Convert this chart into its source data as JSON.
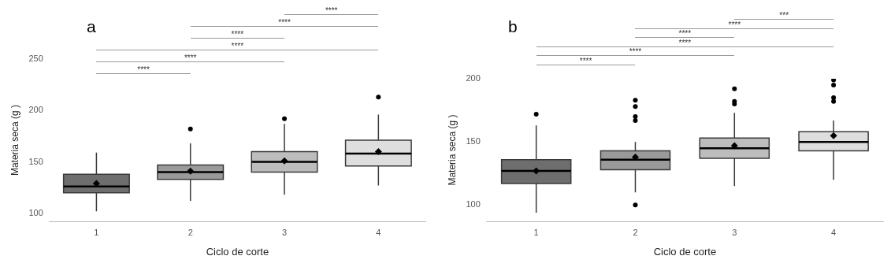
{
  "chart_data": [
    {
      "type": "box",
      "title": "a",
      "xlabel": "Ciclo de corte",
      "ylabel": "Materia seca (g )",
      "categories": [
        "1",
        "2",
        "3",
        "4"
      ],
      "colors": [
        "#6e6e6e",
        "#9a9a9a",
        "#bdbdbd",
        "#dedede"
      ],
      "ylim": [
        92,
        250
      ],
      "yticks": [
        100,
        150,
        200,
        250
      ],
      "grid": false,
      "legend": false,
      "marker": "diamond",
      "boxes": [
        {
          "low": 102,
          "q1": 120,
          "median": 126,
          "q3": 138,
          "high": 159,
          "mean": 129
        },
        {
          "low": 112,
          "q1": 133,
          "median": 140,
          "q3": 147,
          "high": 168,
          "mean": 141,
          "outliers": [
            182
          ]
        },
        {
          "low": 118,
          "q1": 140,
          "median": 150,
          "q3": 160,
          "high": 187,
          "mean": 151,
          "outliers": [
            192
          ]
        },
        {
          "low": 127,
          "q1": 146,
          "median": 158,
          "q3": 171,
          "high": 196,
          "mean": 160,
          "outliers": [
            213
          ]
        }
      ],
      "annotations": [
        "****",
        "****",
        "****",
        "****",
        "****",
        "****"
      ]
    },
    {
      "type": "box",
      "title": "b",
      "xlabel": "Ciclo de corte",
      "ylabel": "Materia seca (g )",
      "categories": [
        "1",
        "2",
        "3",
        "4"
      ],
      "colors": [
        "#6e6e6e",
        "#9a9a9a",
        "#bdbdbd",
        "#dedede"
      ],
      "ylim": [
        87,
        200
      ],
      "yticks": [
        100,
        150,
        200
      ],
      "grid": false,
      "legend": false,
      "marker": "diamond",
      "boxes": [
        {
          "low": 94,
          "q1": 117,
          "median": 127,
          "q3": 136,
          "high": 163,
          "mean": 127,
          "outliers": [
            172
          ]
        },
        {
          "low": 110,
          "q1": 128,
          "median": 136,
          "q3": 143,
          "high": 150,
          "mean": 138,
          "outliers": [
            100,
            167,
            170,
            178,
            183
          ]
        },
        {
          "low": 115,
          "q1": 137,
          "median": 145,
          "q3": 153,
          "high": 173,
          "mean": 147,
          "outliers": [
            180,
            182,
            192
          ]
        },
        {
          "low": 120,
          "q1": 143,
          "median": 150,
          "q3": 158,
          "high": 167,
          "mean": 155,
          "outliers": [
            182,
            185,
            195,
            199
          ]
        }
      ],
      "annotations": [
        "***",
        "****",
        "****",
        "****",
        "****",
        "****"
      ]
    }
  ]
}
